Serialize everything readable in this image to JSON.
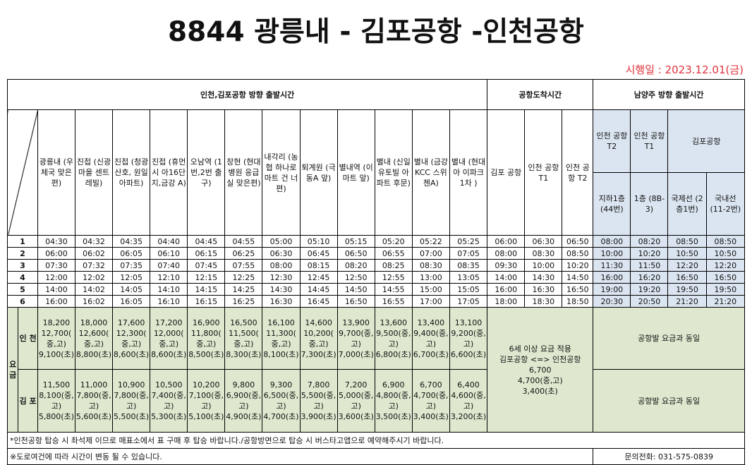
{
  "title": "8844 광릉내 - 김포공항 -인천공항",
  "effective_date": "시행일 : 2023.12.01(금)",
  "sections": {
    "departure_airport": "인천,김포공항 방향 출발시간",
    "arrival_airport": "공항도착시간",
    "departure_namyangju": "남양주 방향 출발시간"
  },
  "stops": [
    "광릉내 (우체국 맞은편)",
    "진접 (신광 마을 센트레빌)",
    "진접 (청광 산호, 원일 아파트)",
    "진접 (휴먼시 아16단 지,금강 A)",
    "오남역 (1번,2번 출구)",
    "장현 (현대 병원 응급실 맞은편)",
    "내각리 (농협 하나로 마트 건 너편)",
    "퇴계원 (극동A 앞)",
    "별내역 (이마트 앞)",
    "별내 (신일 유토빌 아파트 후문)",
    "별내 (금강 KCC 스위첸A)",
    "별내 (현대아 이파크 1차 )"
  ],
  "arrivals": [
    "김포 공항",
    "인천 공항 T1",
    "인천 공항 T2"
  ],
  "return_stops": {
    "t2": "인천 공항 T2",
    "t1": "인천 공항 T1",
    "gimpo": "김포공항",
    "t2_sub": "지하1층 (44번)",
    "t1_sub": "1층 (8B-3)",
    "gimpo_intl": "국제선 (2층1번)",
    "gimpo_dom": "국내선 (11-2번)"
  },
  "schedule": [
    {
      "no": "1",
      "times": [
        "04:30",
        "04:32",
        "04:35",
        "04:40",
        "04:45",
        "04:55",
        "05:00",
        "05:10",
        "05:15",
        "05:20",
        "05:22",
        "05:25"
      ],
      "arr": [
        "06:00",
        "06:30",
        "06:50"
      ],
      "ret": [
        "08:00",
        "08:20",
        "08:50",
        "08:50"
      ]
    },
    {
      "no": "2",
      "times": [
        "06:00",
        "06:02",
        "06:05",
        "06:10",
        "06:15",
        "06:25",
        "06:30",
        "06:45",
        "06:50",
        "06:55",
        "07:00",
        "07:05"
      ],
      "arr": [
        "08:00",
        "08:30",
        "08:50"
      ],
      "ret": [
        "10:00",
        "10:20",
        "10:50",
        "10:50"
      ]
    },
    {
      "no": "3",
      "times": [
        "07:30",
        "07:32",
        "07:35",
        "07:40",
        "07:45",
        "07:55",
        "08:00",
        "08:15",
        "08:20",
        "08:25",
        "08:30",
        "08:35"
      ],
      "arr": [
        "09:30",
        "10:00",
        "10:20"
      ],
      "ret": [
        "11:30",
        "11:50",
        "12:20",
        "12:20"
      ]
    },
    {
      "no": "4",
      "times": [
        "12:00",
        "12:02",
        "12:05",
        "12:10",
        "12:15",
        "12:25",
        "12:30",
        "12:45",
        "12:50",
        "12:55",
        "13:00",
        "13:05"
      ],
      "arr": [
        "14:00",
        "14:30",
        "14:50"
      ],
      "ret": [
        "16:00",
        "16:20",
        "16:50",
        "16:50"
      ]
    },
    {
      "no": "5",
      "times": [
        "14:00",
        "14:02",
        "14:05",
        "14:10",
        "14:15",
        "14:25",
        "14:30",
        "14:45",
        "14:50",
        "14:55",
        "15:00",
        "15:05"
      ],
      "arr": [
        "16:00",
        "16:30",
        "16:50"
      ],
      "ret": [
        "19:00",
        "19:20",
        "19:50",
        "19:50"
      ]
    },
    {
      "no": "6",
      "times": [
        "16:00",
        "16:02",
        "16:05",
        "16:10",
        "16:15",
        "16:25",
        "16:30",
        "16:45",
        "16:50",
        "16:55",
        "17:00",
        "17:05"
      ],
      "arr": [
        "18:00",
        "18:30",
        "18:50"
      ],
      "ret": [
        "20:30",
        "20:50",
        "21:20",
        "21:20"
      ]
    }
  ],
  "fares": {
    "label": "요 금",
    "incheon_label": "인 천",
    "gimpo_label": "김 포",
    "incheon": [
      "18,200 12,700( 중,고) 9,100(초)",
      "18,000 12,600( 중,고) 8,800(초)",
      "17,600 12,300( 중,고) 8,600(초)",
      "17,200 12,000( 중,고) 8,600(초)",
      "16,900 11,800( 중,고) 8,500(초)",
      "16,500 11,500( 중,고) 8,300(초)",
      "16,100 11,300( 중,고) 8,100(초)",
      "14,600 10,200( 중,고) 7,300(초)",
      "13,900 9,700(중, 고) 7,000(초)",
      "13,600 9,500(중, 고) 6,800(초)",
      "13,400 9,400(중, 고) 6,700(초)",
      "13,100 9,200(중, 고) 6,600(초)"
    ],
    "gimpo": [
      "11,500 8,100(중, 고) 5,800(초)",
      "11,000 7,800(중, 고) 5,600(초)",
      "10,900 7,800(중, 고) 5,500(초)",
      "10,500 7,400(중, 고) 5,300(초)",
      "10,200 7,100(중, 고) 5,100(초)",
      "9,800 6,900(중, 고) 4,900(초)",
      "9,300 6,500(중, 고) 4,700(초)",
      "7,800 5,500(중, 고) 3,900(초)",
      "7,200 5,000(중, 고) 3,600(초)",
      "6,900 4,800(중, 고) 3,500(초)",
      "6,700 4,700(중, 고) 3,400(초)",
      "6,400 4,600(중, 고) 3,200(초)"
    ],
    "airport_note_1": "6세 이상 요금 적용",
    "airport_note_2": "김포공항 <=> 인천공항",
    "airport_note_3": "6,700",
    "airport_note_4": "4,700(중,고)",
    "airport_note_5": "3,400(초)",
    "same_fare": "공항발 요금과 동일"
  },
  "notes": {
    "note1": "*인천공항 탑승 시 좌석제 이므로 매표소에서 표 구매 후 탑승 바랍니다./공항방면으로 탑승 시 버스타고앱으로 예약해주시기 바랍니다.",
    "note2": "※도로여건에 따라 시간이 변동 될 수 있습니다.",
    "contact": "문의전화: 031-575-0839"
  }
}
